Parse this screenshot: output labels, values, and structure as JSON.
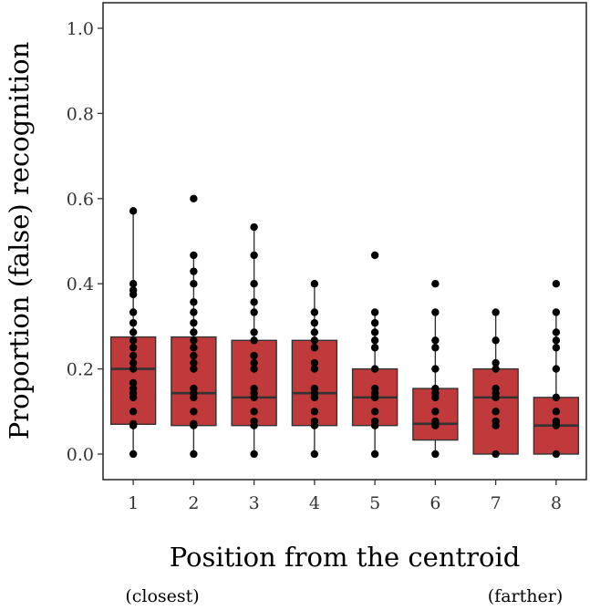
{
  "chart_data": {
    "type": "box",
    "xlabel": "Position from the centroid",
    "ylabel": "Proportion (false) recognition",
    "x_end_labels": {
      "left": "(closest)",
      "right": "(farther)"
    },
    "categories": [
      "1",
      "2",
      "3",
      "4",
      "5",
      "6",
      "7",
      "8"
    ],
    "y_ticks": [
      "0.0",
      "0.2",
      "0.4",
      "0.6",
      "0.8",
      "1.0"
    ],
    "ylim": [
      -0.06,
      1.06
    ],
    "grid": false,
    "colors": {
      "box_fill": "#c0393b",
      "box_stroke": "#333333",
      "point": "#000000"
    },
    "boxes": [
      {
        "category": "1",
        "q1": 0.07,
        "median": 0.2,
        "q3": 0.275,
        "whisker_low": 0.0,
        "whisker_high": 0.57
      },
      {
        "category": "2",
        "q1": 0.067,
        "median": 0.143,
        "q3": 0.275,
        "whisker_low": 0.0,
        "whisker_high": 0.467
      },
      {
        "category": "3",
        "q1": 0.067,
        "median": 0.133,
        "q3": 0.267,
        "whisker_low": 0.0,
        "whisker_high": 0.533
      },
      {
        "category": "4",
        "q1": 0.067,
        "median": 0.143,
        "q3": 0.267,
        "whisker_low": 0.0,
        "whisker_high": 0.4
      },
      {
        "category": "5",
        "q1": 0.067,
        "median": 0.133,
        "q3": 0.2,
        "whisker_low": 0.0,
        "whisker_high": 0.333
      },
      {
        "category": "6",
        "q1": 0.033,
        "median": 0.071,
        "q3": 0.154,
        "whisker_low": 0.0,
        "whisker_high": 0.333
      },
      {
        "category": "7",
        "q1": 0.0,
        "median": 0.133,
        "q3": 0.2,
        "whisker_low": 0.0,
        "whisker_high": 0.333
      },
      {
        "category": "8",
        "q1": 0.0,
        "median": 0.067,
        "q3": 0.133,
        "whisker_low": 0.0,
        "whisker_high": 0.333
      }
    ],
    "points": [
      {
        "category": "1",
        "values": [
          0.0,
          0.067,
          0.071,
          0.1,
          0.133,
          0.143,
          0.154,
          0.167,
          0.2,
          0.214,
          0.231,
          0.25,
          0.267,
          0.286,
          0.308,
          0.333,
          0.375,
          0.385,
          0.4,
          0.571
        ]
      },
      {
        "category": "2",
        "values": [
          0.0,
          0.067,
          0.071,
          0.1,
          0.133,
          0.143,
          0.154,
          0.2,
          0.214,
          0.231,
          0.25,
          0.267,
          0.286,
          0.308,
          0.333,
          0.357,
          0.4,
          0.429,
          0.467,
          0.6
        ]
      },
      {
        "category": "3",
        "values": [
          0.0,
          0.067,
          0.077,
          0.1,
          0.133,
          0.143,
          0.154,
          0.2,
          0.214,
          0.231,
          0.267,
          0.286,
          0.333,
          0.357,
          0.4,
          0.467,
          0.533
        ]
      },
      {
        "category": "4",
        "values": [
          0.0,
          0.067,
          0.077,
          0.1,
          0.133,
          0.143,
          0.154,
          0.2,
          0.214,
          0.25,
          0.267,
          0.286,
          0.308,
          0.333,
          0.4
        ]
      },
      {
        "category": "5",
        "values": [
          0.0,
          0.067,
          0.077,
          0.1,
          0.133,
          0.143,
          0.154,
          0.2,
          0.25,
          0.267,
          0.286,
          0.308,
          0.333,
          0.467
        ]
      },
      {
        "category": "6",
        "values": [
          0.0,
          0.067,
          0.071,
          0.077,
          0.1,
          0.133,
          0.143,
          0.154,
          0.2,
          0.25,
          0.267,
          0.333,
          0.4
        ]
      },
      {
        "category": "7",
        "values": [
          0.0,
          0.067,
          0.077,
          0.1,
          0.133,
          0.143,
          0.154,
          0.2,
          0.214,
          0.267,
          0.333
        ]
      },
      {
        "category": "8",
        "values": [
          0.0,
          0.067,
          0.071,
          0.077,
          0.1,
          0.133,
          0.2,
          0.25,
          0.267,
          0.286,
          0.333,
          0.4
        ]
      }
    ]
  }
}
